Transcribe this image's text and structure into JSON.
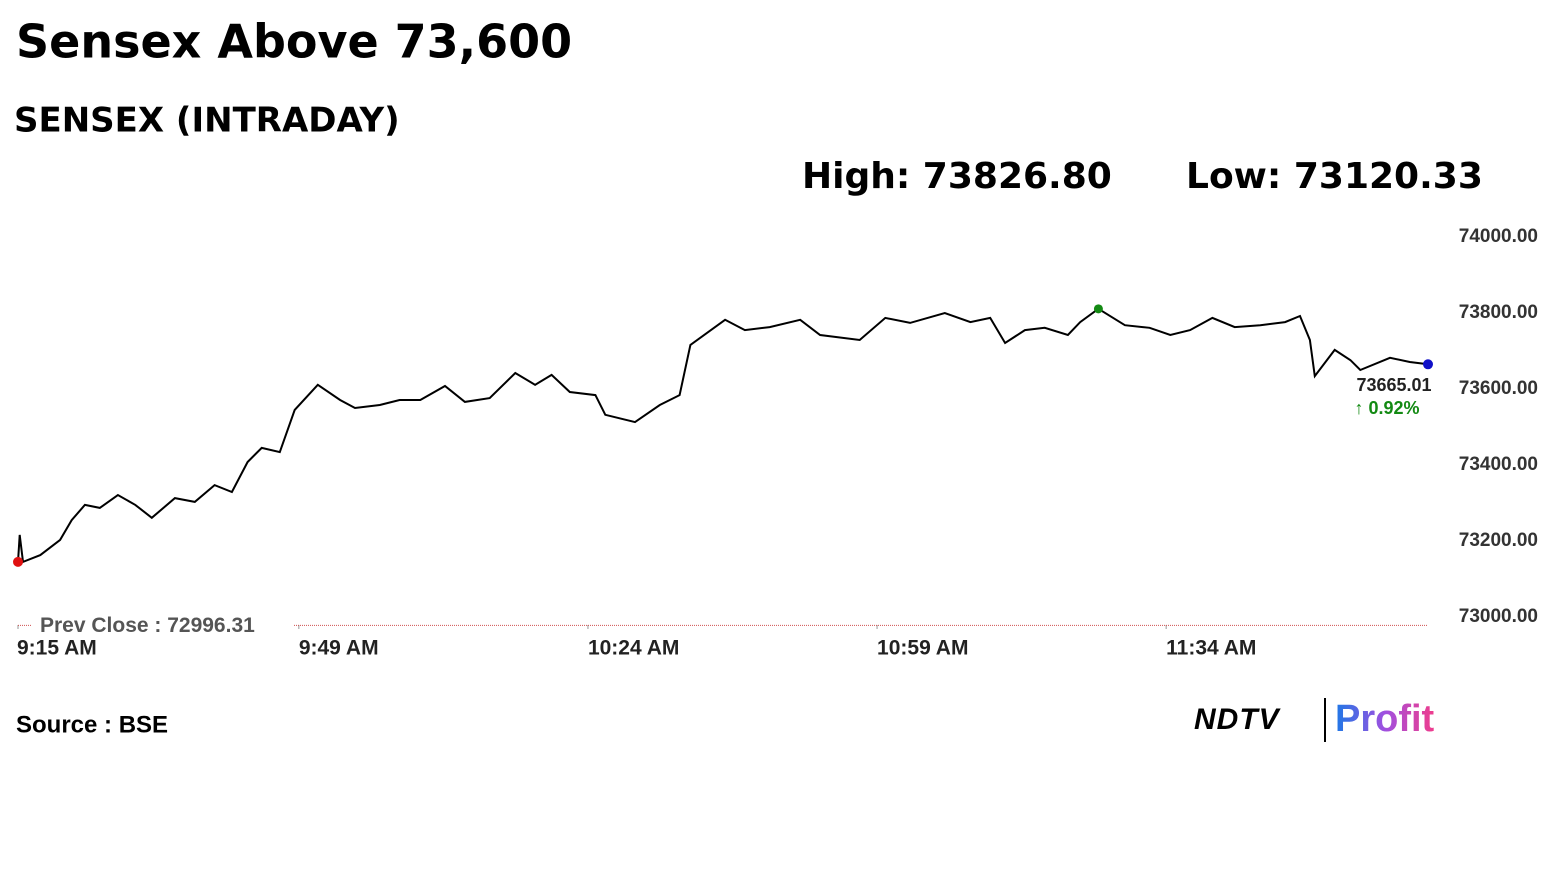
{
  "chart_data": {
    "type": "line",
    "title": "Sensex Above 73,600",
    "subtitle": "SENSEX (INTRADAY)",
    "high_text": "High: 73826.80",
    "low_text": "Low: 73120.33",
    "x": [
      0,
      0.2,
      0.6,
      2.7,
      5.1,
      6.5,
      8.1,
      9.9,
      12.1,
      14.2,
      16.2,
      19,
      21.4,
      23.8,
      25.9,
      27.8,
      29.5,
      31.7,
      33.5,
      36.3,
      39,
      40.8,
      43.8,
      46.2,
      48.7,
      51.7,
      54.1,
      57.1,
      60.2,
      62.6,
      64.6,
      66.8,
      69.9,
      71.1,
      74.7,
      77.7,
      80.1,
      81.4,
      85.6,
      88,
      91,
      94.7,
      97.1,
      101.9,
      105,
      108,
      112.2,
      115.3,
      117.7,
      119.5,
      121.9,
      124.3,
      127.1,
      128.6,
      130.8,
      134,
      137,
      139.5,
      141.9,
      144.6,
      147.3,
      150.4,
      153.4,
      155.2,
      156.4,
      157,
      159.4,
      161.3,
      162.5,
      166.1,
      168.5,
      170.7
    ],
    "series": [
      {
        "name": "SENSEX",
        "color": "#000000",
        "values": [
          73145,
          73216,
          73145,
          73163,
          73203,
          73255,
          73295,
          73287,
          73321,
          73295,
          73261,
          73313,
          73303,
          73347,
          73329,
          73408,
          73445,
          73434,
          73545,
          73611,
          73571,
          73550,
          73558,
          73571,
          73571,
          73608,
          73566,
          73576,
          73642,
          73611,
          73637,
          73592,
          73584,
          73532,
          73513,
          73558,
          73584,
          73716,
          73782,
          73755,
          73763,
          73782,
          73742,
          73729,
          73787,
          73774,
          73800,
          73776,
          73787,
          73721,
          73755,
          73761,
          73742,
          73776,
          73811,
          73768,
          73761,
          73742,
          73755,
          73787,
          73763,
          73768,
          73776,
          73792,
          73729,
          73634,
          73703,
          73676,
          73650,
          73682,
          73671,
          73665.01
        ]
      }
    ],
    "xlim": [
      0,
      170.7
    ],
    "xticks": [
      {
        "value": 0,
        "label": "9:15 AM"
      },
      {
        "value": 34,
        "label": "9:49 AM"
      },
      {
        "value": 69,
        "label": "10:24 AM"
      },
      {
        "value": 104,
        "label": "10:59 AM"
      },
      {
        "value": 139,
        "label": "11:34 AM"
      }
    ],
    "ylim": [
      73000,
      74000
    ],
    "yticks": [
      {
        "value": 73000,
        "label": "73000.00"
      },
      {
        "value": 73200,
        "label": "73200.00"
      },
      {
        "value": 73400,
        "label": "73400.00"
      },
      {
        "value": 73600,
        "label": "73600.00"
      },
      {
        "value": 73800,
        "label": "73800.00"
      },
      {
        "value": 74000,
        "label": "74000.00"
      }
    ],
    "prev_close": {
      "value": 72996.31,
      "label": "Prev Close : 72996.31",
      "color": "#d05050"
    },
    "last_label": {
      "value": 73665.01,
      "label": "73665.01"
    },
    "change_label": "↑ 0.92%",
    "change_color": "#138a13",
    "low_marker_color": "#e01010",
    "high_marker_color": "#138a13",
    "last_marker_color": "#1010c8",
    "source": "Source : BSE",
    "logo": [
      "NDTV",
      "Profit"
    ]
  }
}
